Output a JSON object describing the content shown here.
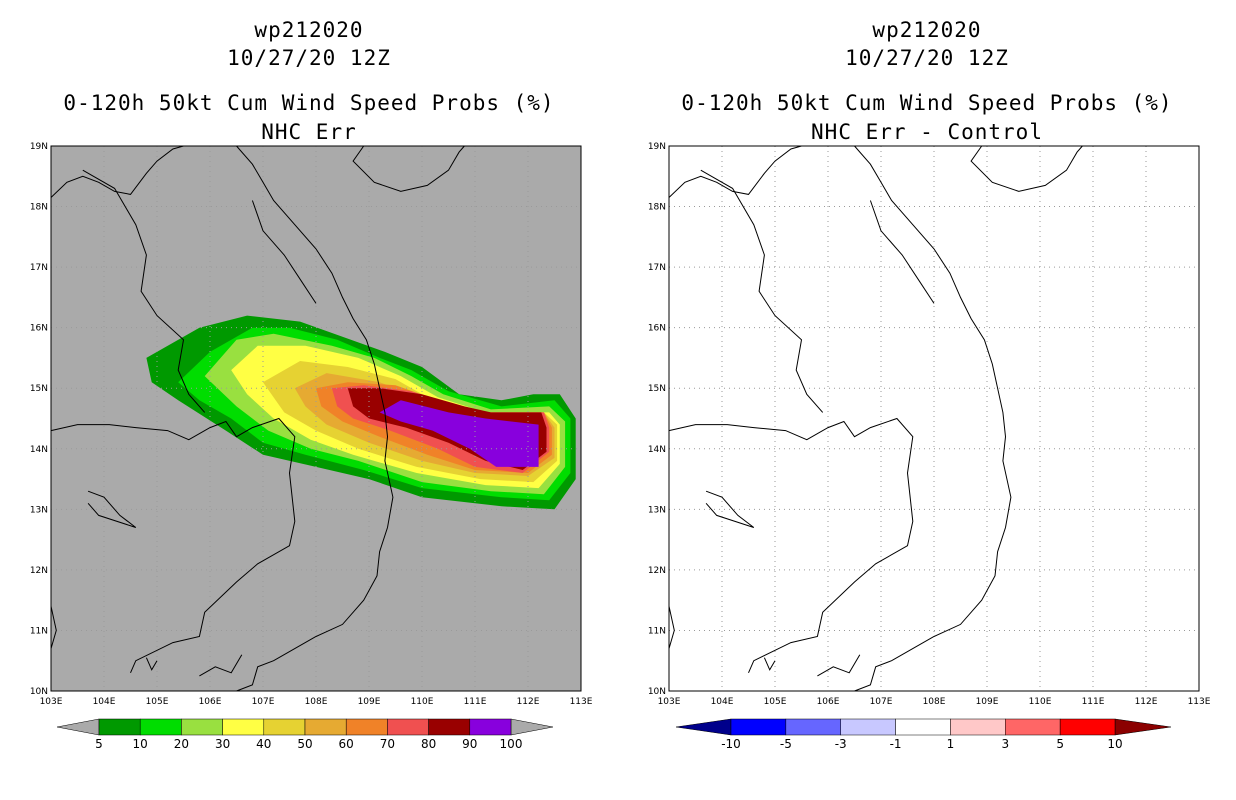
{
  "panels": [
    {
      "storm_id": "wp212020",
      "datetime": "10/27/20 12Z",
      "product": "0-120h 50kt Cum Wind Speed Probs (%)",
      "subtitle": "NHC Err",
      "background": "#aaaaaa",
      "colorbar": {
        "labels": [
          "5",
          "10",
          "20",
          "30",
          "40",
          "50",
          "60",
          "70",
          "80",
          "90",
          "100"
        ],
        "colors": [
          "#009900",
          "#00dd00",
          "#99e040",
          "#ffff44",
          "#e6d232",
          "#e6aa32",
          "#f08228",
          "#f05050",
          "#990000",
          "#8800dd"
        ],
        "end_color_low": "#aaaaaa",
        "end_color_high": "#aaaaaa"
      }
    },
    {
      "storm_id": "wp212020",
      "datetime": "10/27/20 12Z",
      "product": "0-120h 50kt Cum Wind Speed Probs (%)",
      "subtitle": "NHC Err - Control",
      "background": "#ffffff",
      "colorbar": {
        "labels": [
          "-10",
          "-5",
          "-3",
          "-1",
          "1",
          "3",
          "5",
          "10"
        ],
        "colors": [
          "#0000ff",
          "#6666ff",
          "#c8c8ff",
          "#ffffff",
          "#ffc8c8",
          "#ff6666",
          "#ff0000"
        ],
        "end_color_low": "#00008b",
        "end_color_high": "#8b0000"
      }
    }
  ],
  "map": {
    "lon_labels": [
      "103E",
      "104E",
      "105E",
      "106E",
      "107E",
      "108E",
      "109E",
      "110E",
      "111E",
      "112E",
      "113E"
    ],
    "lat_labels": [
      "10N",
      "11N",
      "12N",
      "13N",
      "14N",
      "15N",
      "16N",
      "17N",
      "18N",
      "19N"
    ],
    "lon_range": [
      103,
      113
    ],
    "lat_range": [
      10,
      19
    ]
  },
  "probability_contours": [
    {
      "level": 5,
      "color": "#009900",
      "points": [
        [
          104.8,
          15.5
        ],
        [
          105.8,
          16.0
        ],
        [
          106.7,
          16.2
        ],
        [
          107.7,
          16.1
        ],
        [
          108.5,
          15.85
        ],
        [
          109.3,
          15.6
        ],
        [
          110.0,
          15.35
        ],
        [
          110.7,
          14.9
        ],
        [
          111.5,
          14.8
        ],
        [
          112.1,
          14.9
        ],
        [
          112.6,
          14.9
        ],
        [
          112.9,
          14.5
        ],
        [
          112.9,
          13.5
        ],
        [
          112.5,
          13.0
        ],
        [
          111.5,
          13.05
        ],
        [
          110.0,
          13.2
        ],
        [
          109.0,
          13.5
        ],
        [
          108.0,
          13.7
        ],
        [
          107.0,
          13.9
        ],
        [
          106.3,
          14.3
        ],
        [
          105.4,
          14.8
        ],
        [
          104.9,
          15.1
        ]
      ]
    },
    {
      "level": 10,
      "color": "#00dd00",
      "points": [
        [
          105.4,
          15.1
        ],
        [
          106.0,
          15.6
        ],
        [
          106.8,
          16.0
        ],
        [
          107.5,
          16.0
        ],
        [
          108.4,
          15.8
        ],
        [
          109.2,
          15.5
        ],
        [
          109.8,
          15.3
        ],
        [
          110.5,
          14.95
        ],
        [
          111.5,
          14.7
        ],
        [
          112.5,
          14.8
        ],
        [
          112.8,
          14.5
        ],
        [
          112.8,
          13.6
        ],
        [
          112.4,
          13.15
        ],
        [
          111.5,
          13.2
        ],
        [
          110.0,
          13.35
        ],
        [
          108.9,
          13.65
        ],
        [
          107.8,
          13.9
        ],
        [
          107.0,
          14.1
        ],
        [
          106.4,
          14.5
        ],
        [
          105.8,
          14.8
        ]
      ]
    },
    {
      "level": 20,
      "color": "#99e040",
      "points": [
        [
          105.9,
          15.2
        ],
        [
          106.5,
          15.8
        ],
        [
          107.2,
          15.9
        ],
        [
          108.3,
          15.7
        ],
        [
          109.1,
          15.5
        ],
        [
          109.8,
          15.2
        ],
        [
          110.4,
          14.9
        ],
        [
          111.3,
          14.65
        ],
        [
          112.4,
          14.7
        ],
        [
          112.7,
          14.45
        ],
        [
          112.7,
          13.7
        ],
        [
          112.3,
          13.25
        ],
        [
          111.3,
          13.3
        ],
        [
          110.0,
          13.45
        ],
        [
          108.8,
          13.8
        ],
        [
          107.9,
          14.0
        ],
        [
          107.1,
          14.3
        ],
        [
          106.5,
          14.7
        ]
      ]
    },
    {
      "level": 30,
      "color": "#ffff44",
      "points": [
        [
          106.4,
          15.3
        ],
        [
          106.9,
          15.7
        ],
        [
          107.8,
          15.7
        ],
        [
          108.8,
          15.5
        ],
        [
          109.6,
          15.2
        ],
        [
          110.3,
          14.85
        ],
        [
          111.2,
          14.6
        ],
        [
          112.4,
          14.6
        ],
        [
          112.6,
          14.4
        ],
        [
          112.6,
          13.75
        ],
        [
          112.2,
          13.35
        ],
        [
          111.2,
          13.4
        ],
        [
          109.9,
          13.6
        ],
        [
          108.7,
          13.9
        ],
        [
          107.9,
          14.15
        ],
        [
          107.2,
          14.5
        ],
        [
          106.7,
          14.9
        ]
      ]
    },
    {
      "level": 40,
      "color": "#e6d232",
      "points": [
        [
          107.0,
          15.1
        ],
        [
          107.7,
          15.45
        ],
        [
          108.6,
          15.35
        ],
        [
          109.5,
          15.15
        ],
        [
          110.2,
          14.8
        ],
        [
          111.1,
          14.6
        ],
        [
          112.3,
          14.6
        ],
        [
          112.55,
          14.4
        ],
        [
          112.55,
          13.8
        ],
        [
          112.1,
          13.45
        ],
        [
          111.1,
          13.5
        ],
        [
          109.9,
          13.7
        ],
        [
          108.8,
          14.0
        ],
        [
          108.0,
          14.3
        ],
        [
          107.4,
          14.6
        ]
      ]
    },
    {
      "level": 50,
      "color": "#e6aa32",
      "points": [
        [
          107.6,
          15.0
        ],
        [
          108.2,
          15.25
        ],
        [
          109.2,
          15.1
        ],
        [
          110.1,
          14.8
        ],
        [
          111.0,
          14.6
        ],
        [
          112.3,
          14.6
        ],
        [
          112.5,
          14.35
        ],
        [
          112.5,
          13.85
        ],
        [
          112.0,
          13.55
        ],
        [
          111.0,
          13.6
        ],
        [
          110.0,
          13.8
        ],
        [
          109.0,
          14.1
        ],
        [
          108.2,
          14.4
        ],
        [
          107.8,
          14.7
        ]
      ]
    },
    {
      "level": 60,
      "color": "#f08228",
      "points": [
        [
          108.0,
          15.0
        ],
        [
          108.6,
          15.1
        ],
        [
          109.5,
          15.05
        ],
        [
          110.3,
          14.8
        ],
        [
          111.0,
          14.6
        ],
        [
          112.3,
          14.6
        ],
        [
          112.45,
          14.35
        ],
        [
          112.45,
          13.9
        ],
        [
          112.0,
          13.6
        ],
        [
          111.0,
          13.65
        ],
        [
          110.1,
          13.9
        ],
        [
          109.2,
          14.2
        ],
        [
          108.5,
          14.45
        ],
        [
          108.1,
          14.7
        ]
      ]
    },
    {
      "level": 70,
      "color": "#f05050",
      "points": [
        [
          108.3,
          15.0
        ],
        [
          108.9,
          15.05
        ],
        [
          109.8,
          14.95
        ],
        [
          110.5,
          14.75
        ],
        [
          111.1,
          14.6
        ],
        [
          112.3,
          14.6
        ],
        [
          112.4,
          14.35
        ],
        [
          112.4,
          13.95
        ],
        [
          111.9,
          13.6
        ],
        [
          111.0,
          13.7
        ],
        [
          110.3,
          14.0
        ],
        [
          109.4,
          14.3
        ],
        [
          108.7,
          14.5
        ],
        [
          108.4,
          14.7
        ]
      ]
    },
    {
      "level": 80,
      "color": "#990000",
      "points": [
        [
          108.6,
          15.0
        ],
        [
          109.2,
          15.0
        ],
        [
          110.0,
          14.9
        ],
        [
          110.8,
          14.7
        ],
        [
          111.3,
          14.6
        ],
        [
          112.25,
          14.6
        ],
        [
          112.35,
          14.35
        ],
        [
          112.35,
          13.95
        ],
        [
          111.9,
          13.65
        ],
        [
          111.2,
          13.8
        ],
        [
          110.5,
          14.1
        ],
        [
          109.7,
          14.35
        ],
        [
          109.0,
          14.5
        ],
        [
          108.7,
          14.7
        ]
      ]
    },
    {
      "level": 90,
      "color": "#8800dd",
      "points": [
        [
          109.2,
          14.6
        ],
        [
          109.6,
          14.8
        ],
        [
          110.5,
          14.6
        ],
        [
          111.2,
          14.5
        ],
        [
          112.2,
          14.4
        ],
        [
          112.2,
          13.7
        ],
        [
          111.4,
          13.7
        ],
        [
          110.9,
          14.0
        ],
        [
          110.2,
          14.3
        ],
        [
          109.6,
          14.45
        ]
      ]
    }
  ]
}
